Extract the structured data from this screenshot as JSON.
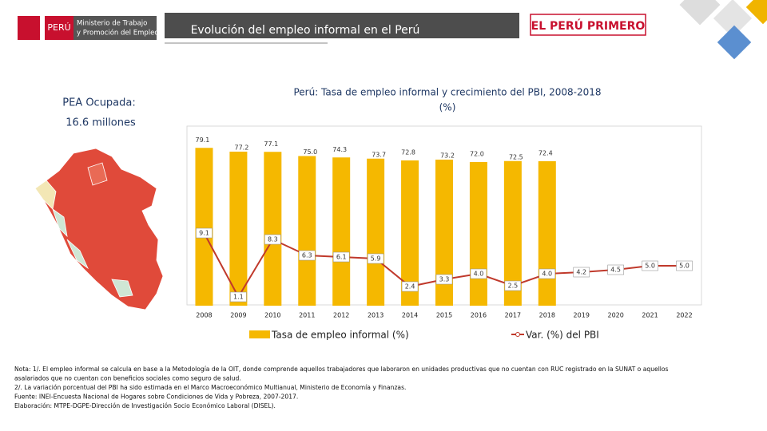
{
  "header": {
    "country": "PERÚ",
    "ministry": [
      "Ministerio de Trabajo",
      "y Promoción del Empleo"
    ],
    "title": "Evolución del empleo informal en el Perú",
    "slogan": "EL PERÚ PRIMERO"
  },
  "pea": {
    "label": "PEA Ocupada:",
    "value": "16.6 millones"
  },
  "chart_data": {
    "type": "bar",
    "title": "Perú: Tasa de empleo informal y crecimiento del PBI, 2008-2018",
    "subtitle": "(%)",
    "categories": [
      "2008",
      "2009",
      "2010",
      "2011",
      "2012",
      "2013",
      "2014",
      "2015",
      "2016",
      "2017",
      "2018",
      "2019",
      "2020",
      "2021",
      "2022"
    ],
    "series": [
      {
        "name": "Tasa de empleo informal (%)",
        "color": "#f5b800",
        "values": [
          79.1,
          77.2,
          77.1,
          75.0,
          74.3,
          73.7,
          72.8,
          73.2,
          72.0,
          72.5,
          72.4,
          null,
          null,
          null,
          null
        ],
        "value_labels": [
          "79.1",
          "77.2",
          "77.1",
          "75.0",
          "74.3",
          "73.7",
          "72.8",
          "73.2",
          "72.0",
          "72.5",
          "72.4",
          null,
          null,
          null,
          null
        ]
      },
      {
        "name": "Var. (%) del PBI",
        "type": "line",
        "axis": "y2",
        "color": "#c0392b",
        "values": [
          9.1,
          1.1,
          8.3,
          6.3,
          6.1,
          5.9,
          2.4,
          3.3,
          4.0,
          2.5,
          4.0,
          4.2,
          4.5,
          5.0,
          5.0
        ],
        "value_labels": [
          "9.1",
          "1.1",
          "8.3",
          "6.3",
          "6.1",
          "5.9",
          "2.4",
          "3.3",
          "4.0",
          "2.5",
          "4.0",
          "4.2",
          "4.5",
          "5.0",
          "5.0"
        ]
      }
    ],
    "ylim": [
      0,
      80
    ],
    "y2lim": [
      0,
      20
    ]
  },
  "notes": [
    "Nota: 1/. El empleo informal se calcula en base a la Metodología de la OIT, donde comprende aquellos trabajadores que laboraron en unidades productivas que no cuentan con RUC registrado en la SUNAT o aquellos",
    "asalariados que no cuentan con beneficios sociales como seguro de salud.",
    "2/. La variación porcentual del PBI ha sido estimada en el Marco Macroeconómico Multianual, Ministerio de Economía y Finanzas.",
    "Fuente: INEI-Encuesta Nacional de Hogares sobre Condiciones de Vida y Pobreza, 2007-2017.",
    "Elaboración: MTPE-DGPE-Dirección de Investigación Socio Económico Laboral (DISEL)."
  ]
}
